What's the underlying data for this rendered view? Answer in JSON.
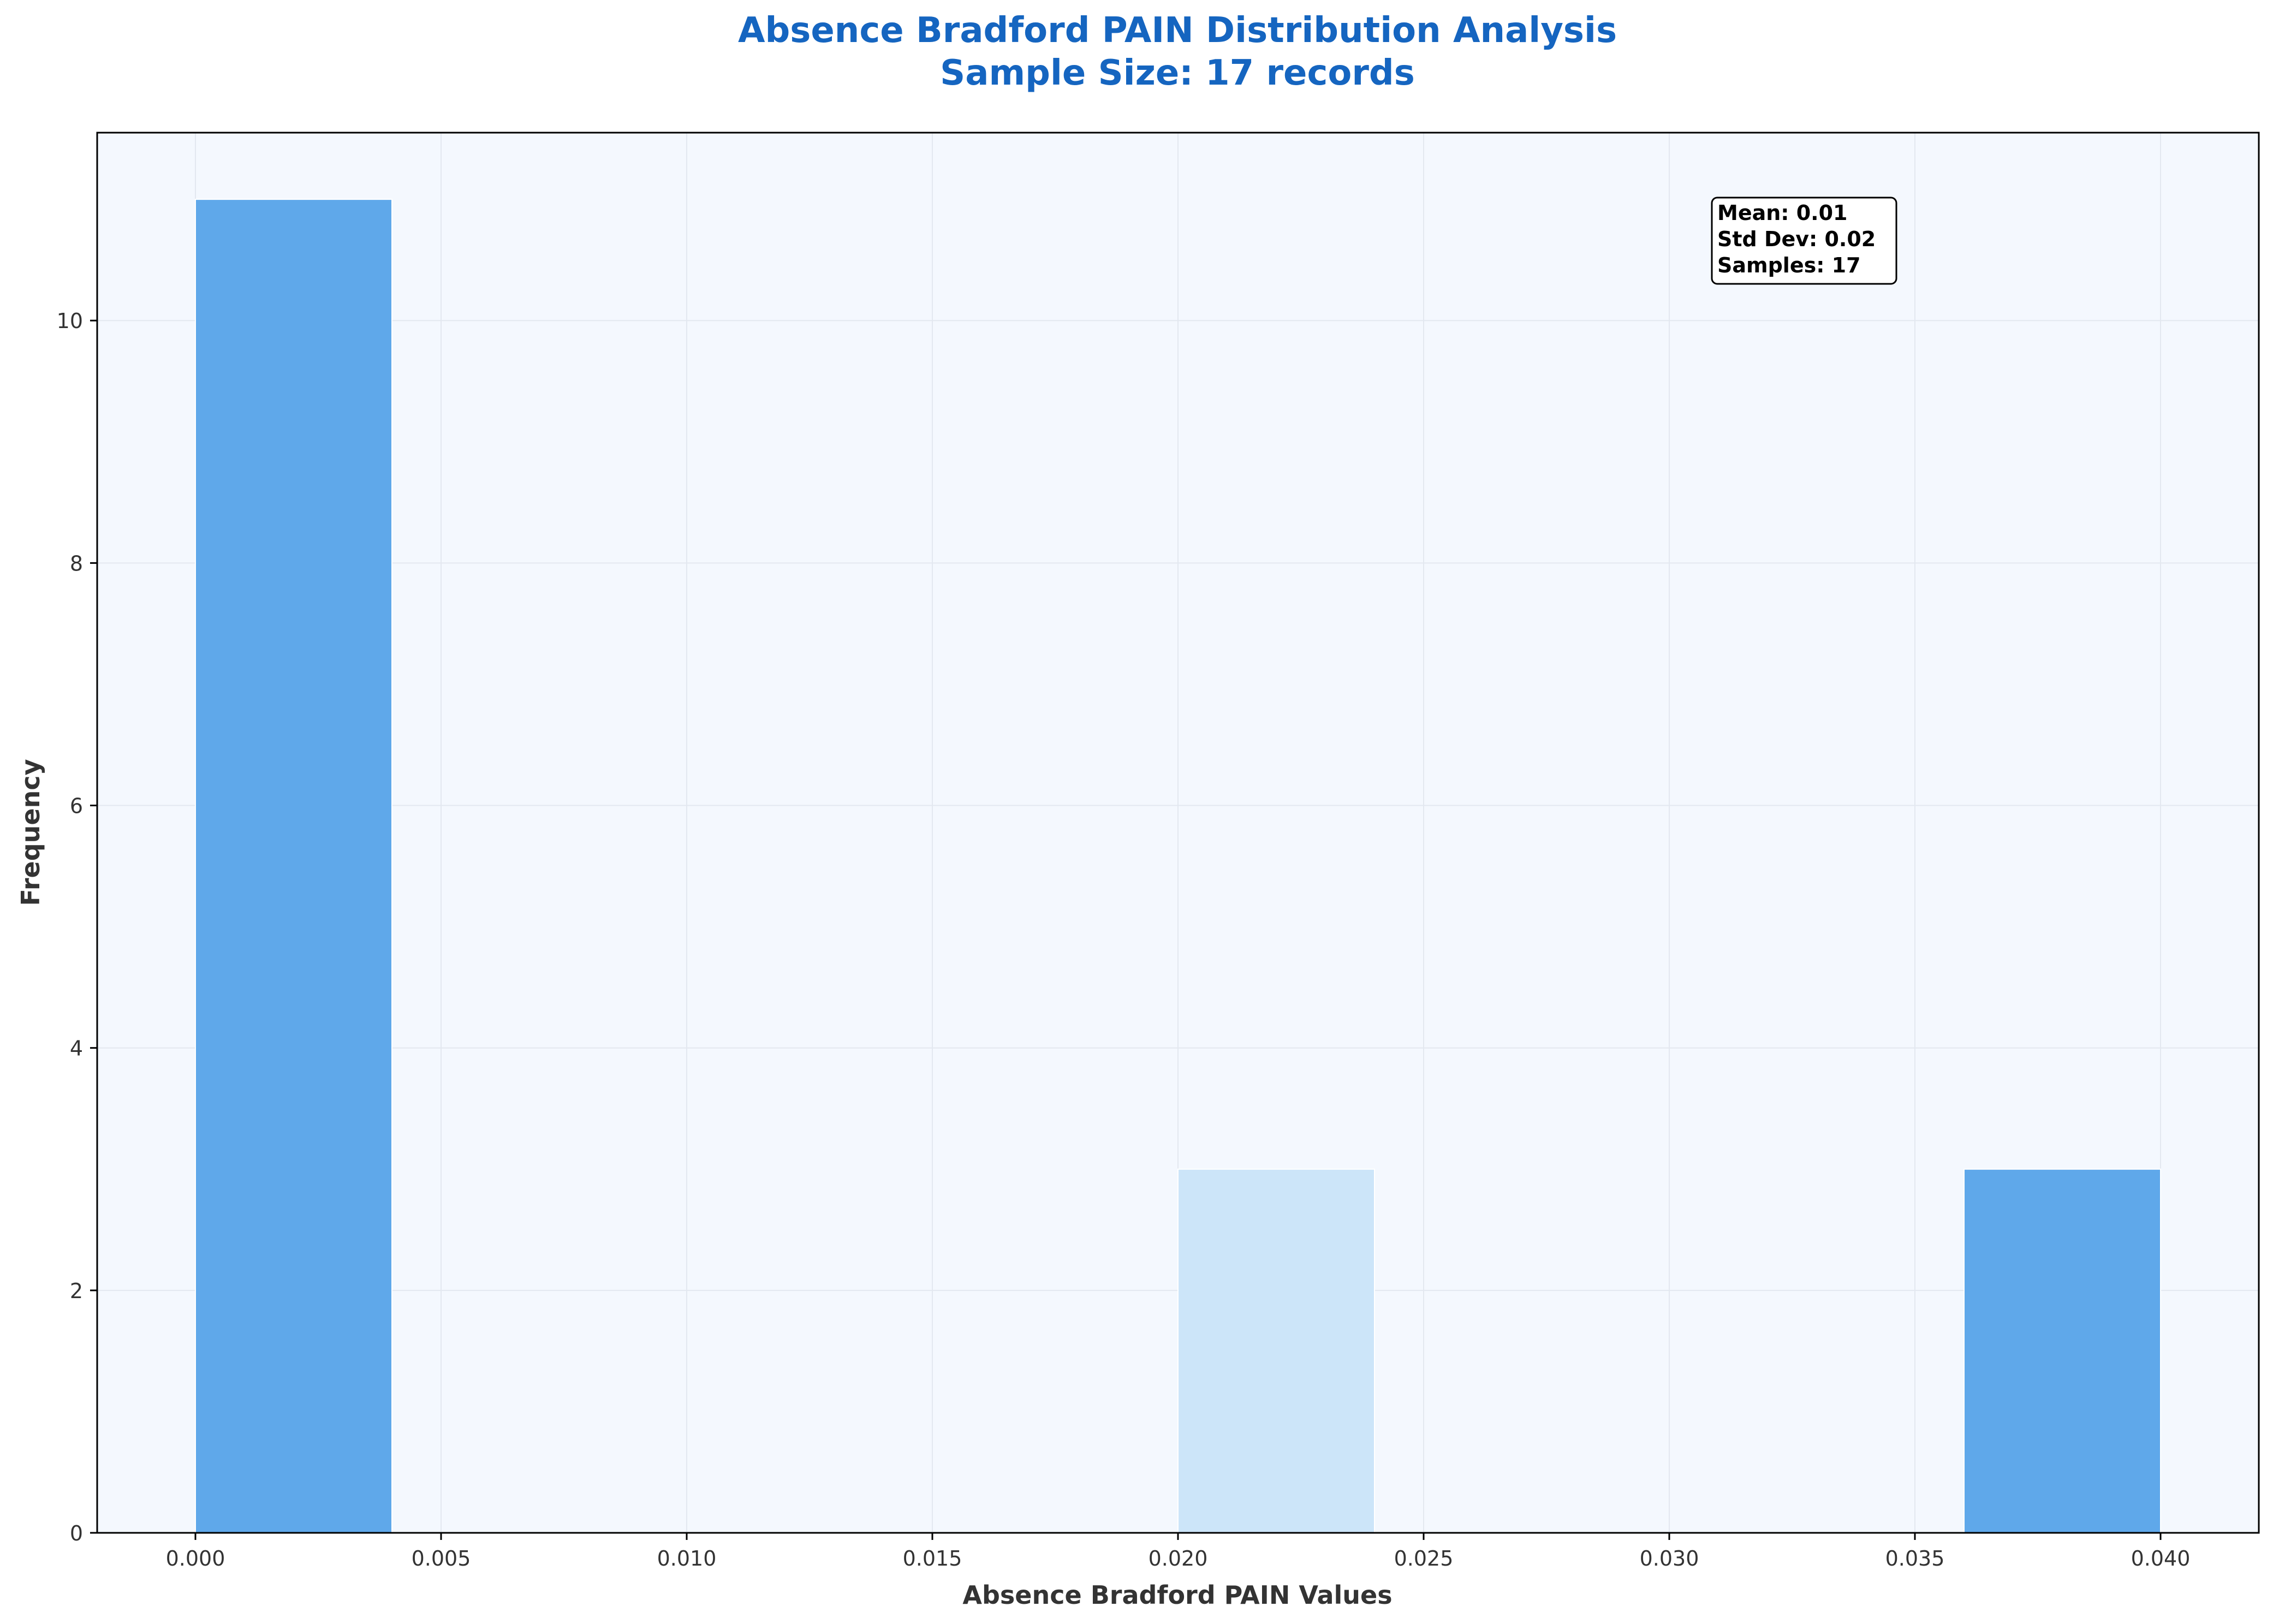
{
  "chart_data": {
    "type": "bar",
    "title": "Absence Bradford PAIN Distribution Analysis",
    "subtitle": "Sample Size: 17 records",
    "xlabel": "Absence Bradford PAIN Values",
    "ylabel": "Frequency",
    "xlim": [
      -0.002,
      0.042
    ],
    "ylim": [
      0,
      11.55
    ],
    "x_ticks": [
      0.0,
      0.005,
      0.01,
      0.015,
      0.02,
      0.025,
      0.03,
      0.035,
      0.04
    ],
    "x_tick_labels": [
      "0.000",
      "0.005",
      "0.010",
      "0.015",
      "0.020",
      "0.025",
      "0.030",
      "0.035",
      "0.040"
    ],
    "y_ticks": [
      0,
      2,
      4,
      6,
      8,
      10
    ],
    "y_tick_labels": [
      "0",
      "2",
      "4",
      "6",
      "8",
      "10"
    ],
    "grid": true,
    "bins": [
      {
        "start": 0.0,
        "end": 0.004,
        "count": 11,
        "color": "#5fa8ea"
      },
      {
        "start": 0.004,
        "end": 0.008,
        "count": 0,
        "color": "#5fa8ea"
      },
      {
        "start": 0.008,
        "end": 0.012,
        "count": 0,
        "color": "#5fa8ea"
      },
      {
        "start": 0.012,
        "end": 0.016,
        "count": 0,
        "color": "#5fa8ea"
      },
      {
        "start": 0.016,
        "end": 0.02,
        "count": 0,
        "color": "#5fa8ea"
      },
      {
        "start": 0.02,
        "end": 0.024,
        "count": 3,
        "color": "#cce5f9"
      },
      {
        "start": 0.024,
        "end": 0.028,
        "count": 0,
        "color": "#5fa8ea"
      },
      {
        "start": 0.028,
        "end": 0.032,
        "count": 0,
        "color": "#5fa8ea"
      },
      {
        "start": 0.032,
        "end": 0.036,
        "count": 0,
        "color": "#5fa8ea"
      },
      {
        "start": 0.036,
        "end": 0.04,
        "count": 3,
        "color": "#5fa8ea"
      }
    ],
    "stats_box": {
      "lines": [
        "Mean: 0.01",
        "Std Dev: 0.02",
        "Samples: 17"
      ],
      "placement": "top-right"
    },
    "colors": {
      "title": "#1565c0",
      "plot_background": "#f4f8fe",
      "bar": "#5fa8ea",
      "bar_highlight": "#cce5f9",
      "axis_text": "#333333",
      "grid": "#e3e8f0"
    }
  }
}
